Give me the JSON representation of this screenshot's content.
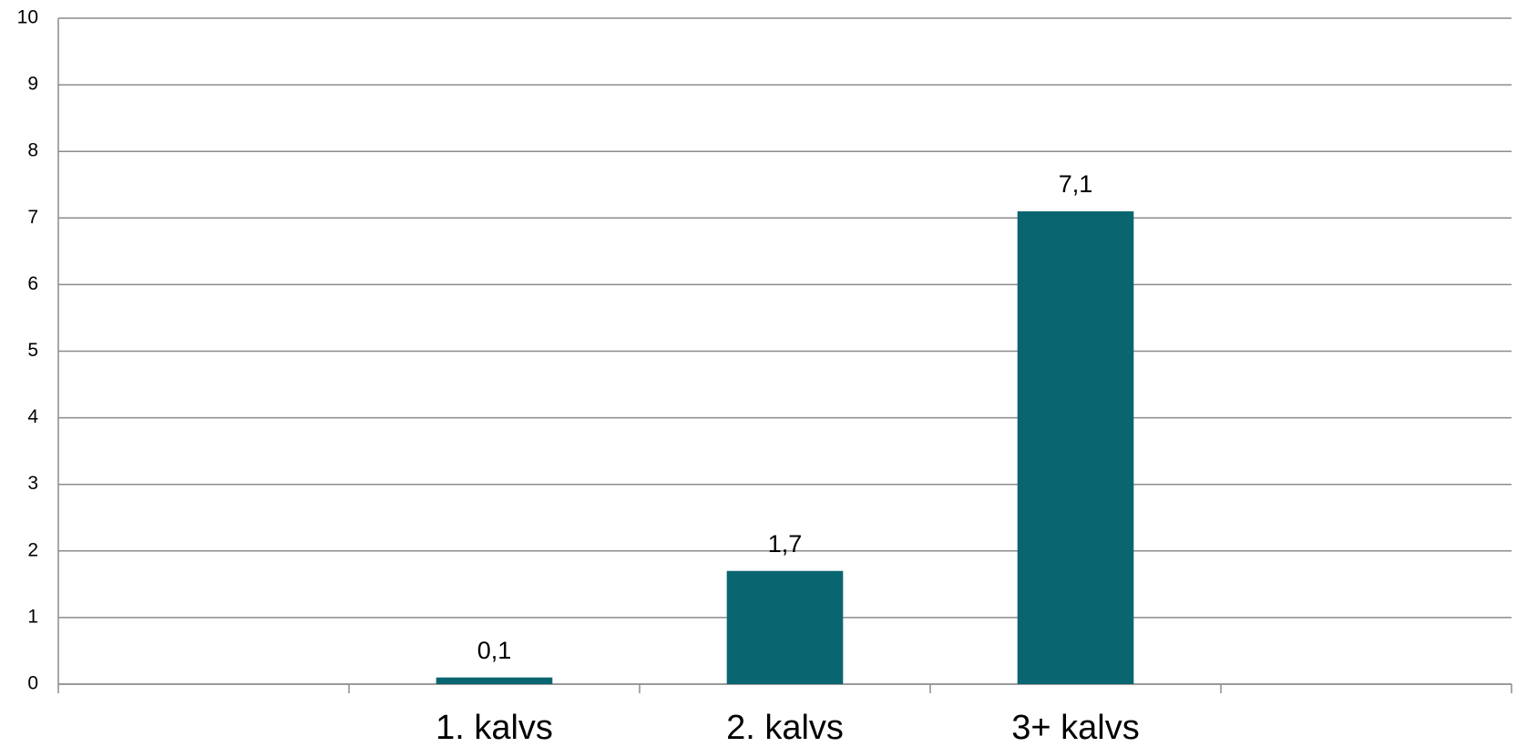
{
  "chart_data": {
    "type": "bar",
    "categories": [
      null,
      "1. kalvs",
      "2. kalvs",
      "3+ kalvs",
      null
    ],
    "values": [
      null,
      0.1,
      1.7,
      7.1,
      null
    ],
    "value_labels": [
      null,
      "0,1",
      "1,7",
      "7,1",
      null
    ],
    "color": "#096570",
    "ylim": [
      0,
      10
    ],
    "yticks": [
      0,
      1,
      2,
      3,
      4,
      5,
      6,
      7,
      8,
      9,
      10
    ],
    "grid": true
  }
}
